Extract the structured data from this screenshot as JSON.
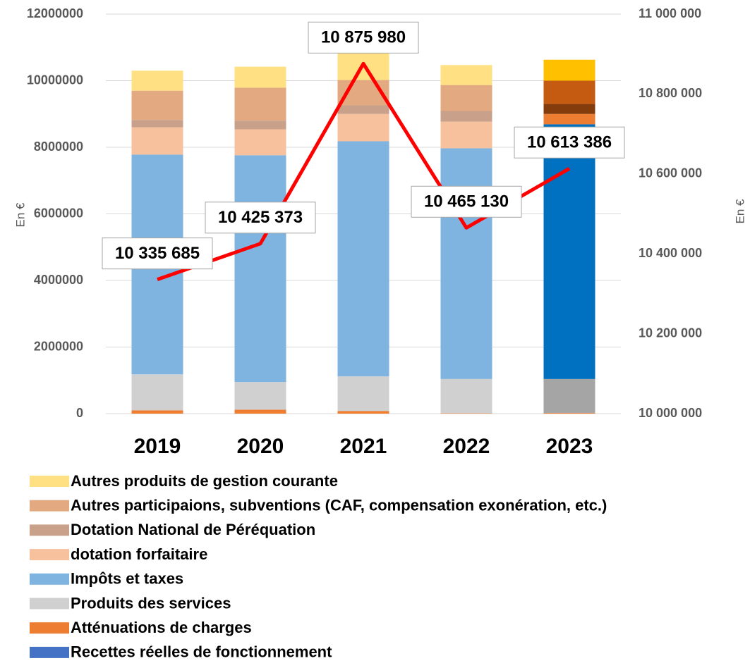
{
  "chart_data": {
    "type": "bar",
    "stacked": true,
    "categories": [
      "2019",
      "2020",
      "2021",
      "2022",
      "2023"
    ],
    "ylabel": "En €",
    "y2label": "En €",
    "ylim": [
      0,
      12000000
    ],
    "yticks": [
      0,
      2000000,
      4000000,
      6000000,
      8000000,
      10000000,
      12000000
    ],
    "y2lim": [
      10000000,
      11000000
    ],
    "y2ticks": [
      {
        "value": 10000000,
        "label": "10 000 000"
      },
      {
        "value": 10200000,
        "label": "10 200 000"
      },
      {
        "value": 10400000,
        "label": "10 400 000"
      },
      {
        "value": 10600000,
        "label": "10 600 000"
      },
      {
        "value": 10800000,
        "label": "10 800 000"
      },
      {
        "value": 11000000,
        "label": "11 000 000"
      }
    ],
    "grid": true,
    "legend": "bottom",
    "series": [
      {
        "name": "Autres produits de gestion courante",
        "color": "#ffe083",
        "colors": [
          "#ffe083",
          "#ffe083",
          "#ffe083",
          "#ffe083",
          "#ffc000"
        ],
        "values": [
          600000,
          630000,
          810000,
          600000,
          630000
        ]
      },
      {
        "name": "Autres participaions, subventions (CAF, compensation exonération, etc.)",
        "color": "#e3aa82",
        "colors": [
          "#e3aa82",
          "#e3aa82",
          "#e3aa82",
          "#e3aa82",
          "#c55a11"
        ],
        "values": [
          880000,
          990000,
          760000,
          780000,
          700000
        ]
      },
      {
        "name": "Dotation National de Péréquation",
        "color": "#c9a08a",
        "colors": [
          "#c9a08a",
          "#c9a08a",
          "#c9a08a",
          "#c9a08a",
          "#843c0c"
        ],
        "values": [
          220000,
          260000,
          260000,
          320000,
          300000
        ]
      },
      {
        "name": "dotation forfaitaire",
        "color": "#f8c19e",
        "colors": [
          "#f8c19e",
          "#f8c19e",
          "#f8c19e",
          "#f8c19e",
          "#ed7d31"
        ],
        "values": [
          820000,
          780000,
          820000,
          800000,
          310000
        ]
      },
      {
        "name": "Impôts et taxes",
        "color": "#7fb3e0",
        "colors": [
          "#7fb3e0",
          "#7fb3e0",
          "#7fb3e0",
          "#7fb3e0",
          "#0070c0"
        ],
        "values": [
          6600000,
          6810000,
          7060000,
          6930000,
          7650000
        ]
      },
      {
        "name": "Produits des services",
        "color": "#d0d0d0",
        "colors": [
          "#d0d0d0",
          "#d0d0d0",
          "#d0d0d0",
          "#d0d0d0",
          "#a5a5a5"
        ],
        "values": [
          1080000,
          830000,
          1040000,
          1030000,
          1020000
        ]
      },
      {
        "name": "Atténuations de charges",
        "color": "#ed7d31",
        "colors": [
          "#ed7d31",
          "#ed7d31",
          "#ed7d31",
          "#ed7d31",
          "#ed7d31"
        ],
        "values": [
          100000,
          120000,
          80000,
          10000,
          20000
        ]
      },
      {
        "name": "Recettes réelles de fonctionnement",
        "type": "line",
        "axis": "y2",
        "color": "#ff0000",
        "legend_color": "#4472c4",
        "values": [
          10335685,
          10425373,
          10875980,
          10465130,
          10613386
        ],
        "value_labels": [
          "10 335 685",
          "10 425 373",
          "10 875 980",
          "10 465 130",
          "10 613 386"
        ]
      }
    ]
  }
}
